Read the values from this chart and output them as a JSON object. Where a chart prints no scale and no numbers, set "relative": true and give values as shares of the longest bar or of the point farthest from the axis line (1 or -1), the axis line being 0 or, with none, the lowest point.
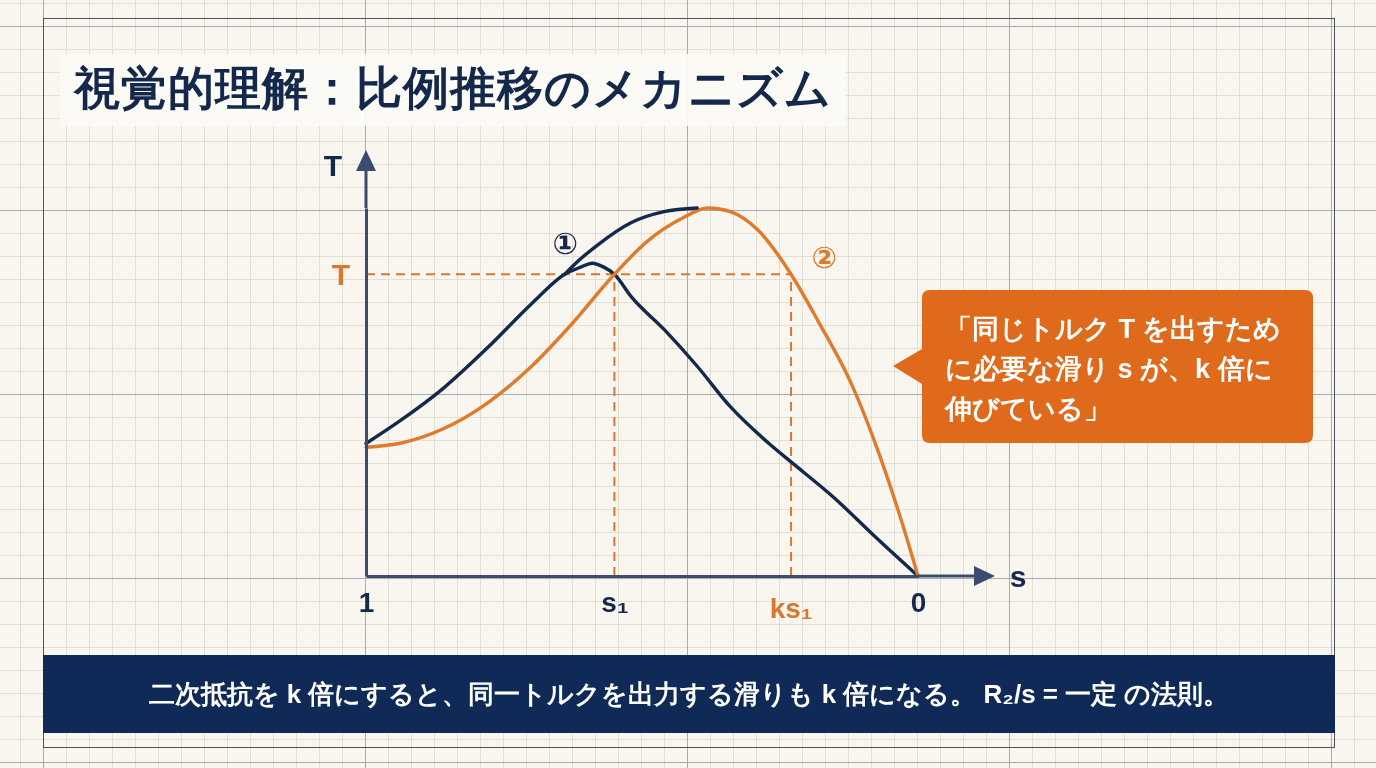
{
  "chart_data": {
    "type": "line",
    "title": "視覚的理解：比例推移のメカニズム",
    "xlabel": "s",
    "ylabel": "T",
    "relative": true,
    "xlim": [
      1,
      0
    ],
    "xticks": [
      1,
      {
        "value": 0.55,
        "label": "s₁"
      },
      0
    ],
    "series": [
      {
        "name": "①",
        "color": "#15294d",
        "x": [
          1,
          0.94,
          0.86,
          0.78,
          0.7,
          0.64,
          0.61,
          0.59,
          0.57,
          0.55,
          0.52,
          0.46,
          0.4,
          0.34,
          0.27,
          0.23,
          0.15,
          0.08,
          0
        ],
        "values": [
          0.36,
          0.42,
          0.51,
          0.62,
          0.74,
          0.82,
          0.84,
          0.85,
          0.84,
          0.82,
          0.76,
          0.67,
          0.57,
          0.46,
          0.36,
          0.31,
          0.21,
          0.11,
          0
        ]
      },
      {
        "name": "②",
        "color": "#e07a2c",
        "x": [
          1,
          0.94,
          0.86,
          0.78,
          0.7,
          0.63,
          0.55,
          0.49,
          0.43,
          0.38,
          0.34,
          0.29,
          0.23,
          0.18,
          0.12,
          0.07,
          0.03,
          0
        ],
        "values": [
          0.35,
          0.36,
          0.4,
          0.47,
          0.57,
          0.68,
          0.82,
          0.91,
          0.97,
          1,
          0.99,
          0.94,
          0.82,
          0.69,
          0.52,
          0.33,
          0.15,
          0
        ]
      },
      {
        "color": "#15294d",
        "x": [
          0.64,
          0.62,
          0.58,
          0.52,
          0.46,
          0.4
        ],
        "values": [
          0.82,
          0.85,
          0.9,
          0.96,
          0.99,
          1
        ]
      }
    ],
    "ref_lines": [
      {
        "axis": "y",
        "value": 0.82,
        "label": "T",
        "color": "#d9782e",
        "line_style": "dashed"
      },
      {
        "axis": "x",
        "value": 0.55,
        "color": "#d9782e",
        "line_style": "dashed"
      },
      {
        "axis": "x",
        "value": 0.23,
        "label": "ks₁",
        "color": "#d9782e",
        "line_style": "dashed"
      }
    ],
    "annotations": [
      "「同じトルク T を出すために必要な滑り s が、k 倍に伸びている」",
      "二次抵抗を k 倍にすると、同一トルクを出力する滑りも k 倍になる。 R₂/s = 一定 の法則。"
    ]
  }
}
